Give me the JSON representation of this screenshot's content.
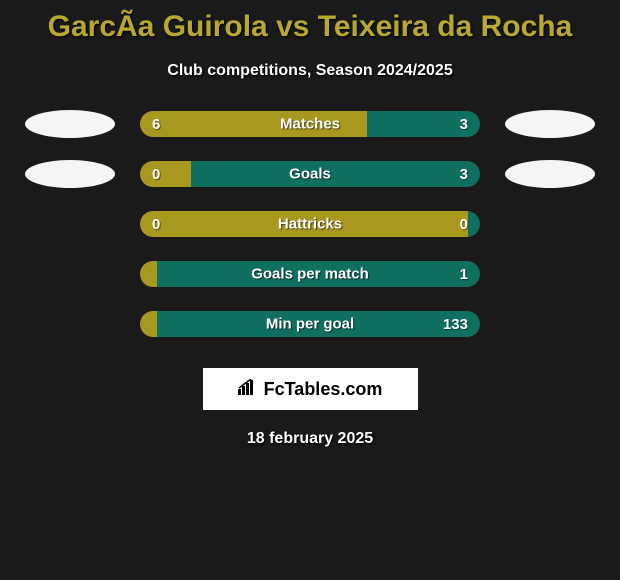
{
  "title": "GarcÃa Guirola vs Teixeira da Rocha",
  "subtitle": "Club competitions, Season 2024/2025",
  "colors": {
    "background": "#1a1a1a",
    "title_color": "#b8a830",
    "left_bar": "#a89820",
    "right_bar": "#107060",
    "avatar_bg": "#f5f5f5"
  },
  "stats": [
    {
      "label": "Matches",
      "left_value": "6",
      "right_value": "3",
      "left_pct": 66.7,
      "right_pct": 33.3,
      "show_left_avatar": true,
      "show_right_avatar": true
    },
    {
      "label": "Goals",
      "left_value": "0",
      "right_value": "3",
      "left_pct": 15,
      "right_pct": 85,
      "show_left_avatar": true,
      "show_right_avatar": true
    },
    {
      "label": "Hattricks",
      "left_value": "0",
      "right_value": "0",
      "left_pct": 100,
      "right_pct": 0,
      "show_left_avatar": false,
      "show_right_avatar": false
    },
    {
      "label": "Goals per match",
      "left_value": "",
      "right_value": "1",
      "left_pct": 5,
      "right_pct": 95,
      "show_left_avatar": false,
      "show_right_avatar": false
    },
    {
      "label": "Min per goal",
      "left_value": "",
      "right_value": "133",
      "left_pct": 5,
      "right_pct": 95,
      "show_left_avatar": false,
      "show_right_avatar": false
    }
  ],
  "logo": {
    "text": "FcTables.com"
  },
  "date": "18 february 2025"
}
